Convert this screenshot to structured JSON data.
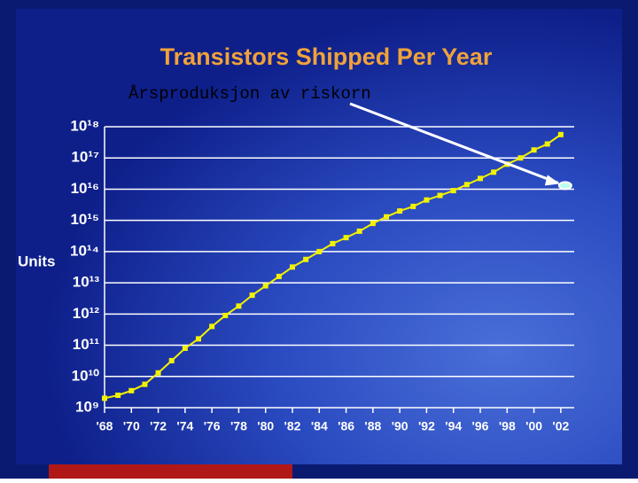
{
  "chart_data": {
    "type": "line",
    "title": "Transistors Shipped Per Year",
    "ylabel": "Units",
    "annotation": {
      "text": "Årsproduksjon av riskorn",
      "x": 2002,
      "value": 1.3e+16
    },
    "x": [
      1968,
      1969,
      1970,
      1971,
      1972,
      1973,
      1974,
      1975,
      1976,
      1977,
      1978,
      1979,
      1980,
      1981,
      1982,
      1983,
      1984,
      1985,
      1986,
      1987,
      1988,
      1989,
      1990,
      1991,
      1992,
      1993,
      1994,
      1995,
      1996,
      1997,
      1998,
      1999,
      2000,
      2001,
      2002
    ],
    "series": [
      {
        "name": "Units",
        "color": "#f2f200",
        "values": [
          2000000000.0,
          2500000000.0,
          3500000000.0,
          5600000000.0,
          13000000000.0,
          32000000000.0,
          80000000000.0,
          160000000000.0,
          400000000000.0,
          900000000000.0,
          1800000000000.0,
          4000000000000.0,
          8000000000000.0,
          16000000000000.0,
          32000000000000.0,
          56000000000000.0,
          100000000000000.0,
          180000000000000.0,
          280000000000000.0,
          450000000000000.0,
          800000000000000.0,
          1300000000000000.0,
          2000000000000000.0,
          2800000000000000.0,
          4500000000000000.0,
          6300000000000000.0,
          9000000000000000.0,
          1.4e+16,
          2.2e+16,
          3.5e+16,
          6.3e+16,
          1e+17,
          1.8e+17,
          2.8e+17,
          5.6e+17
        ]
      }
    ],
    "xlim": [
      1968,
      2003
    ],
    "xticks": [
      {
        "value": 1968,
        "label": "'68"
      },
      {
        "value": 1970,
        "label": "'70"
      },
      {
        "value": 1972,
        "label": "'72"
      },
      {
        "value": 1974,
        "label": "'74"
      },
      {
        "value": 1976,
        "label": "'76"
      },
      {
        "value": 1978,
        "label": "'78"
      },
      {
        "value": 1980,
        "label": "'80"
      },
      {
        "value": 1982,
        "label": "'82"
      },
      {
        "value": 1984,
        "label": "'84"
      },
      {
        "value": 1986,
        "label": "'86"
      },
      {
        "value": 1988,
        "label": "'88"
      },
      {
        "value": 1990,
        "label": "'90"
      },
      {
        "value": 1992,
        "label": "'92"
      },
      {
        "value": 1994,
        "label": "'94"
      },
      {
        "value": 1996,
        "label": "'96"
      },
      {
        "value": 1998,
        "label": "'98"
      },
      {
        "value": 2000,
        "label": "'00"
      },
      {
        "value": 2002,
        "label": "'02"
      }
    ],
    "ylim": [
      1000000000.0,
      1e+18
    ],
    "log_y": true,
    "grid": true,
    "yticks": [
      {
        "value": 1000000000.0,
        "label": "10⁹"
      },
      {
        "value": 10000000000.0,
        "label": "10¹⁰"
      },
      {
        "value": 100000000000.0,
        "label": "10¹¹"
      },
      {
        "value": 1000000000000.0,
        "label": "10¹²"
      },
      {
        "value": 10000000000000.0,
        "label": "10¹³"
      },
      {
        "value": 100000000000000.0,
        "label": "10¹⁴"
      },
      {
        "value": 1000000000000000.0,
        "label": "10¹⁵"
      },
      {
        "value": 1e+16,
        "label": "10¹⁶"
      },
      {
        "value": 1e+17,
        "label": "10¹⁷"
      },
      {
        "value": 1e+18,
        "label": "10¹⁸"
      }
    ]
  }
}
